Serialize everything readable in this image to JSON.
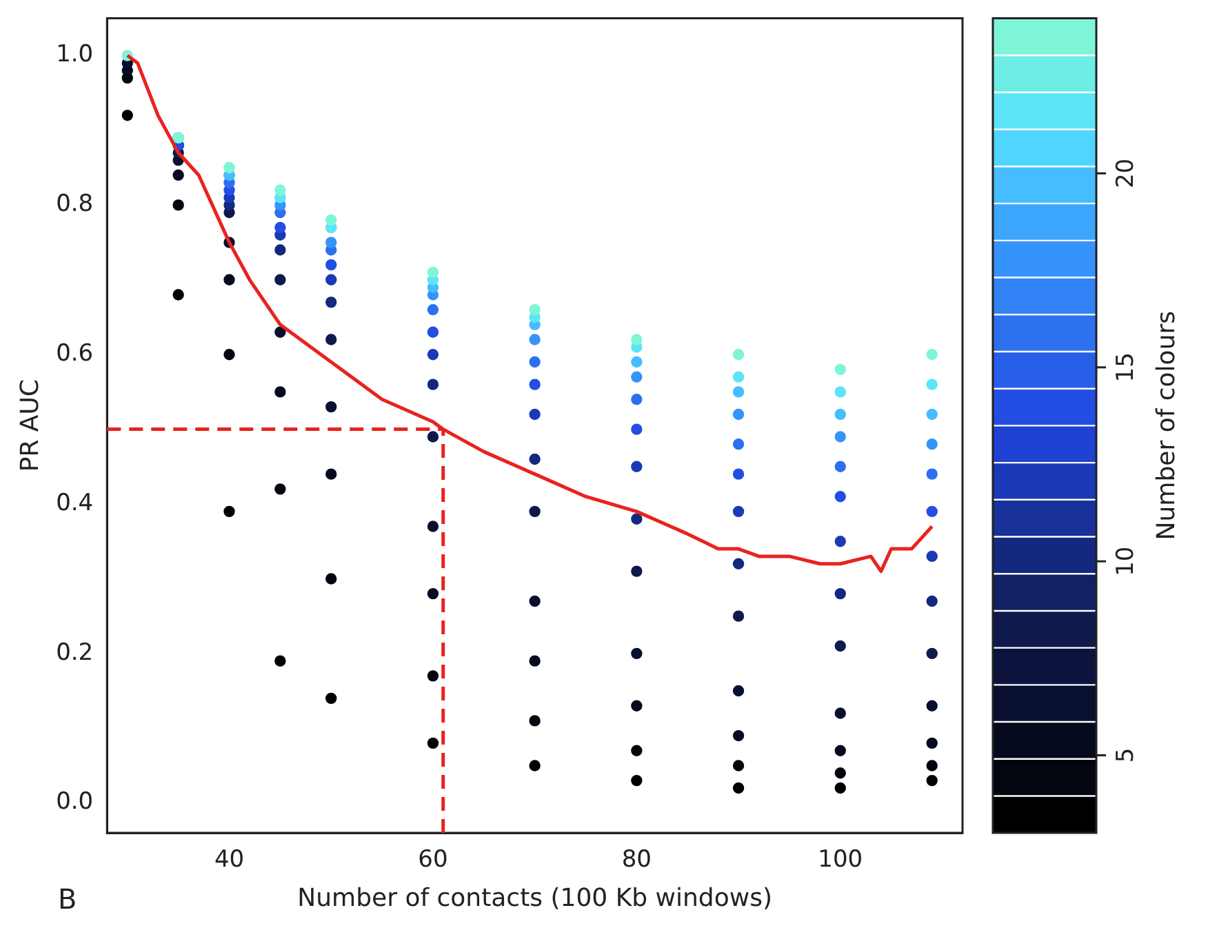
{
  "chart_data": {
    "type": "scatter",
    "xlabel": "Number of contacts (100 Kb windows)",
    "ylabel": "PR AUC",
    "clabel": "Number of colours",
    "xlim": [
      28,
      112
    ],
    "xticks": [
      40,
      60,
      80,
      100
    ],
    "ylim": [
      -0.04,
      1.05
    ],
    "yticks": [
      {
        "value": 0,
        "label": "0.0"
      },
      {
        "value": 0.2,
        "label": "0.2"
      },
      {
        "value": 0.4,
        "label": "0.4"
      },
      {
        "value": 0.6,
        "label": "0.6"
      },
      {
        "value": 0.8,
        "label": "0.8"
      },
      {
        "value": 1,
        "label": "1.0"
      }
    ],
    "clim": [
      3,
      24
    ],
    "cticks": [
      5,
      10,
      15,
      20
    ],
    "grid": false,
    "legend": false,
    "series": [
      {
        "marker": "circle",
        "colors": [
          "#000000",
          "#000000",
          "#000000",
          "#000000",
          "#000000",
          "#000000",
          "#000000",
          "#000000",
          "#000000",
          "#000000",
          "#000000",
          "#03050f",
          "#03050f",
          "#03050f",
          "#03050f",
          "#03050f",
          "#03050f",
          "#03050f",
          "#03050f",
          "#03050f",
          "#03050f",
          "#03050f",
          "#060a1e",
          "#060a1e",
          "#060a1e",
          "#060a1e",
          "#060a1e",
          "#060a1e",
          "#060a1e",
          "#060a1e",
          "#060a1e",
          "#060a1e",
          "#060a1e",
          "#090f2e",
          "#090f2e",
          "#090f2e",
          "#090f2e",
          "#090f2e",
          "#090f2e",
          "#090f2e",
          "#090f2e",
          "#090f2e",
          "#090f2e",
          "#090f2e",
          "#0f194c",
          "#0f194c",
          "#0f194c",
          "#0f194c",
          "#0f194c",
          "#0f194c",
          "#0f194c",
          "#0f194c",
          "#0f194c",
          "#0f194c",
          "#152880",
          "#152880",
          "#152880",
          "#152880",
          "#152880",
          "#152880",
          "#152880",
          "#152880",
          "#152880",
          "#152880",
          "#1b39b7",
          "#1b39b7",
          "#1b39b7",
          "#1b39b7",
          "#1b39b7",
          "#1b39b7",
          "#1b39b7",
          "#1b39b7",
          "#1b39b7",
          "#1b39b7",
          "#224ee3",
          "#224ee3",
          "#224ee3",
          "#224ee3",
          "#224ee3",
          "#224ee3",
          "#224ee3",
          "#224ee3",
          "#224ee3",
          "#224ee3",
          "#2c70ef",
          "#2c70ef",
          "#2c70ef",
          "#2c70ef",
          "#2c70ef",
          "#2c70ef",
          "#2c70ef",
          "#2c70ef",
          "#2c70ef",
          "#2c70ef",
          "#3693fb",
          "#3693fb",
          "#3693fb",
          "#3693fb",
          "#3693fb",
          "#3693fb",
          "#3693fb",
          "#3693fb",
          "#3693fb",
          "#3693fb",
          "#46bdff",
          "#46bdff",
          "#46bdff",
          "#46bdff",
          "#46bdff",
          "#46bdff",
          "#46bdff",
          "#46bdff",
          "#46bdff",
          "#46bdff",
          "#5ee4f7",
          "#5ee4f7",
          "#5ee4f7",
          "#5ee4f7",
          "#5ee4f7",
          "#5ee4f7",
          "#5ee4f7",
          "#5ee4f7",
          "#5ee4f7",
          "#5ee4f7",
          "#7ff5d8",
          "#7ff5d8",
          "#7ff5d8",
          "#7ff5d8",
          "#7ff5d8",
          "#7ff5d8",
          "#7ff5d8",
          "#7ff5d8",
          "#7ff5d8",
          "#7ff5d8",
          "#7ff5d8"
        ],
        "x": [
          30,
          35,
          40,
          45,
          50,
          60,
          70,
          80,
          90,
          100,
          109,
          30,
          35,
          40,
          45,
          50,
          60,
          70,
          80,
          90,
          100,
          109,
          30,
          35,
          40,
          45,
          50,
          60,
          70,
          80,
          90,
          100,
          109,
          30,
          35,
          40,
          45,
          50,
          60,
          70,
          80,
          90,
          100,
          109,
          35,
          40,
          45,
          50,
          60,
          70,
          80,
          90,
          100,
          109,
          35,
          40,
          45,
          50,
          60,
          70,
          80,
          90,
          100,
          109,
          35,
          40,
          45,
          50,
          60,
          70,
          80,
          90,
          100,
          109,
          35,
          40,
          45,
          50,
          60,
          70,
          80,
          90,
          100,
          109,
          35,
          40,
          45,
          50,
          60,
          70,
          80,
          90,
          100,
          109,
          35,
          40,
          45,
          50,
          60,
          70,
          80,
          90,
          100,
          109,
          35,
          40,
          45,
          50,
          60,
          70,
          80,
          90,
          100,
          109,
          35,
          40,
          45,
          50,
          60,
          70,
          80,
          90,
          100,
          109,
          30,
          35,
          40,
          45,
          50,
          60,
          70,
          80,
          90,
          100,
          109
        ],
        "values": [
          0.92,
          0.68,
          0.39,
          0.19,
          0.14,
          0.08,
          0.05,
          0.03,
          0.02,
          0.02,
          0.03,
          0.97,
          0.8,
          0.6,
          0.42,
          0.3,
          0.17,
          0.11,
          0.07,
          0.05,
          0.04,
          0.05,
          0.98,
          0.84,
          0.7,
          0.55,
          0.44,
          0.28,
          0.19,
          0.13,
          0.09,
          0.07,
          0.08,
          0.99,
          0.86,
          0.75,
          0.63,
          0.53,
          0.37,
          0.27,
          0.2,
          0.15,
          0.12,
          0.13,
          0.87,
          0.79,
          0.7,
          0.62,
          0.49,
          0.39,
          0.31,
          0.25,
          0.21,
          0.2,
          0.88,
          0.8,
          0.74,
          0.67,
          0.56,
          0.46,
          0.38,
          0.32,
          0.28,
          0.27,
          0.88,
          0.81,
          0.76,
          0.7,
          0.6,
          0.52,
          0.45,
          0.39,
          0.35,
          0.33,
          0.88,
          0.82,
          0.77,
          0.72,
          0.63,
          0.56,
          0.5,
          0.44,
          0.41,
          0.39,
          0.89,
          0.83,
          0.79,
          0.74,
          0.66,
          0.59,
          0.54,
          0.48,
          0.45,
          0.44,
          0.89,
          0.84,
          0.8,
          0.75,
          0.68,
          0.62,
          0.57,
          0.52,
          0.49,
          0.48,
          0.89,
          0.84,
          0.81,
          0.77,
          0.69,
          0.64,
          0.59,
          0.55,
          0.52,
          0.52,
          0.89,
          0.85,
          0.81,
          0.77,
          0.7,
          0.65,
          0.61,
          0.57,
          0.55,
          0.56,
          1.0,
          0.89,
          0.85,
          0.82,
          0.78,
          0.71,
          0.66,
          0.62,
          0.6,
          0.58,
          0.6
        ],
        "cvalues": [
          3,
          3,
          3,
          3,
          3,
          3,
          3,
          3,
          3,
          3,
          3,
          4,
          4,
          4,
          4,
          4,
          4,
          4,
          4,
          4,
          4,
          4,
          5,
          5,
          5,
          5,
          5,
          5,
          5,
          5,
          5,
          5,
          5,
          6,
          6,
          6,
          6,
          6,
          6,
          6,
          6,
          6,
          6,
          6,
          8,
          8,
          8,
          8,
          8,
          8,
          8,
          8,
          8,
          8,
          10,
          10,
          10,
          10,
          10,
          10,
          10,
          10,
          10,
          10,
          12,
          12,
          12,
          12,
          12,
          12,
          12,
          12,
          12,
          12,
          14,
          14,
          14,
          14,
          14,
          14,
          14,
          14,
          14,
          14,
          16,
          16,
          16,
          16,
          16,
          16,
          16,
          16,
          16,
          16,
          18,
          18,
          18,
          18,
          18,
          18,
          18,
          18,
          18,
          18,
          20,
          20,
          20,
          20,
          20,
          20,
          20,
          20,
          20,
          20,
          22,
          22,
          22,
          22,
          22,
          22,
          22,
          22,
          22,
          22,
          24,
          24,
          24,
          24,
          24,
          24,
          24,
          24,
          24,
          24,
          24
        ]
      },
      {
        "type": "line",
        "marker": "none",
        "color": "#e8231f",
        "x": [
          30,
          31,
          33,
          35,
          37,
          40,
          42,
          45,
          50,
          55,
          60,
          61,
          65,
          70,
          75,
          80,
          85,
          88,
          90,
          92,
          95,
          98,
          100,
          103,
          104,
          105,
          107,
          109
        ],
        "values": [
          1.0,
          0.99,
          0.92,
          0.87,
          0.84,
          0.75,
          0.7,
          0.64,
          0.59,
          0.54,
          0.51,
          0.5,
          0.47,
          0.44,
          0.41,
          0.39,
          0.36,
          0.34,
          0.34,
          0.33,
          0.33,
          0.32,
          0.32,
          0.33,
          0.31,
          0.34,
          0.34,
          0.37
        ]
      }
    ],
    "ref_lines": [
      {
        "axis": "y",
        "value": 0.5,
        "color": "#e8231f",
        "line_style": "dashed"
      },
      {
        "axis": "x",
        "value": 61,
        "color": "#e8231f",
        "line_style": "dashed"
      }
    ],
    "annotations": [
      "B"
    ]
  }
}
